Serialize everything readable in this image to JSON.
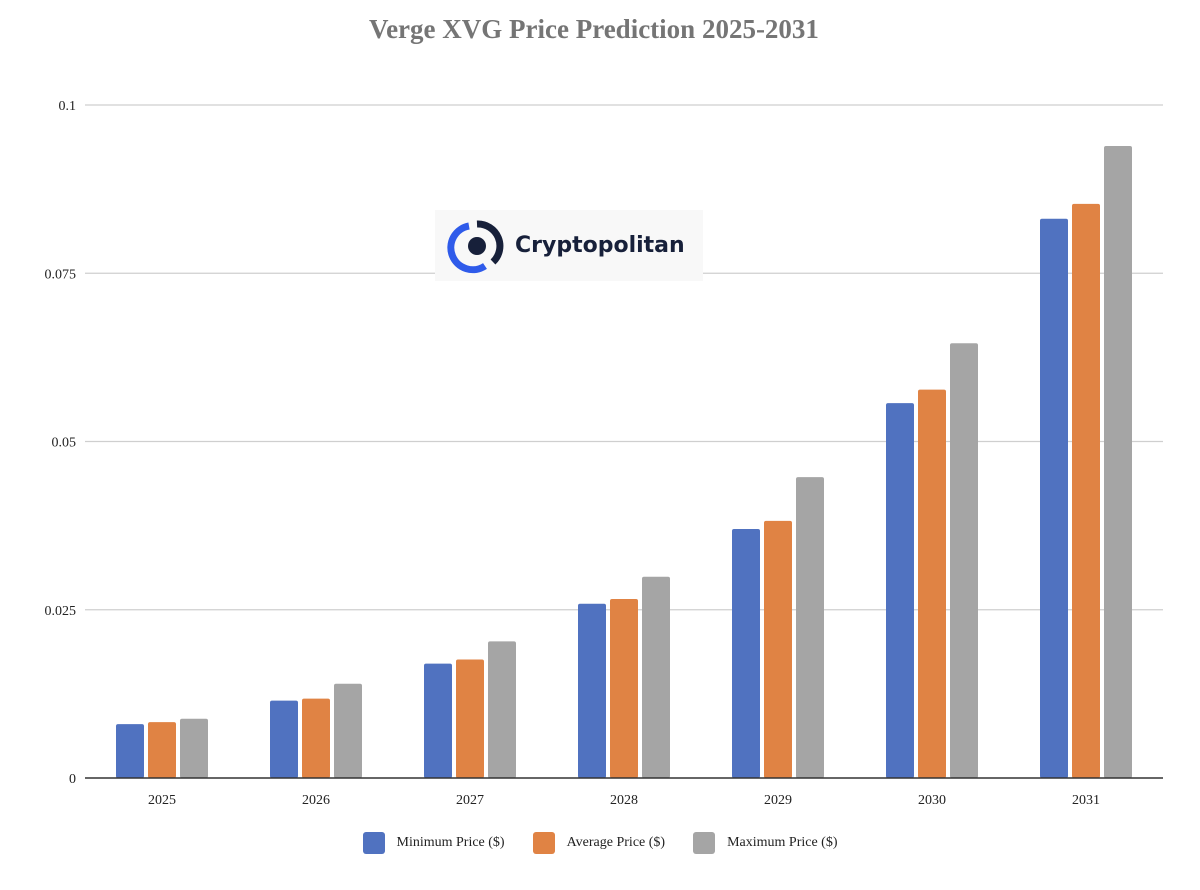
{
  "chart_data": {
    "type": "bar",
    "title": "Verge XVG Price Prediction 2025-2031",
    "xlabel": "",
    "ylabel": "",
    "categories": [
      "2025",
      "2026",
      "2027",
      "2028",
      "2029",
      "2030",
      "2031"
    ],
    "ylim": [
      0,
      0.1
    ],
    "yticks": [
      "0",
      "0.025",
      "0.05",
      "0.075",
      "0.1"
    ],
    "grid": true,
    "legend": "bottom",
    "series": [
      {
        "name": "Minimum Price ($)",
        "color": "#5072c0",
        "values": [
          0.008,
          0.0115,
          0.017,
          0.0259,
          0.037,
          0.0557,
          0.0831
        ]
      },
      {
        "name": "Average Price ($)",
        "color": "#e08344",
        "values": [
          0.0083,
          0.0118,
          0.0176,
          0.0266,
          0.0382,
          0.0577,
          0.0853
        ]
      },
      {
        "name": "Maximum Price ($)",
        "color": "#a5a5a5",
        "values": [
          0.0088,
          0.014,
          0.0203,
          0.0299,
          0.0447,
          0.0646,
          0.0939
        ]
      }
    ]
  },
  "watermark": {
    "text": "Cryptopolitan"
  }
}
